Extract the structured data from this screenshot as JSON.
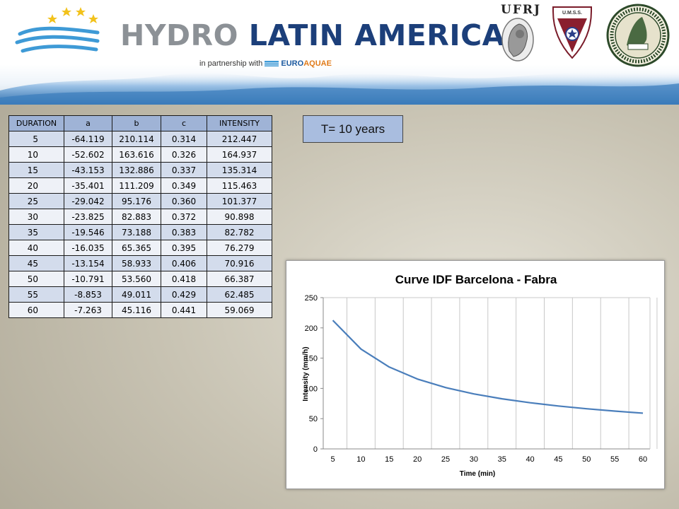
{
  "header": {
    "title_word1": "HYDRO",
    "title_word2": "LATIN AMERICA",
    "partner_prefix": "in partnership with",
    "partner_brand_1": "EURO",
    "partner_brand_2": "AQUAE",
    "ufrj_label": "UFRJ",
    "umss_label": "U.M.S.S.",
    "colors": {
      "title_blue": "#1c3f7a",
      "title_grey": "#8c9196",
      "water_blue": "#5f9fd6"
    }
  },
  "table": {
    "headers": [
      "DURATION",
      "a",
      "b",
      "c",
      "INTENSITY"
    ],
    "rows": [
      [
        "5",
        "-64.119",
        "210.114",
        "0.314",
        "212.447"
      ],
      [
        "10",
        "-52.602",
        "163.616",
        "0.326",
        "164.937"
      ],
      [
        "15",
        "-43.153",
        "132.886",
        "0.337",
        "135.314"
      ],
      [
        "20",
        "-35.401",
        "111.209",
        "0.349",
        "115.463"
      ],
      [
        "25",
        "-29.042",
        "95.176",
        "0.360",
        "101.377"
      ],
      [
        "30",
        "-23.825",
        "82.883",
        "0.372",
        "90.898"
      ],
      [
        "35",
        "-19.546",
        "73.188",
        "0.383",
        "82.782"
      ],
      [
        "40",
        "-16.035",
        "65.365",
        "0.395",
        "76.279"
      ],
      [
        "45",
        "-13.154",
        "58.933",
        "0.406",
        "70.916"
      ],
      [
        "50",
        "-10.791",
        "53.560",
        "0.418",
        "66.387"
      ],
      [
        "55",
        "-8.853",
        "49.011",
        "0.429",
        "62.485"
      ],
      [
        "60",
        "-7.263",
        "45.116",
        "0.441",
        "59.069"
      ]
    ]
  },
  "return_period_label": "T= 10 years",
  "chart_data": {
    "type": "line",
    "title": "Curve IDF Barcelona - Fabra",
    "xlabel": "Time (min)",
    "ylabel": "Intensity (mm/h)",
    "x": [
      5,
      10,
      15,
      20,
      25,
      30,
      35,
      40,
      45,
      50,
      55,
      60
    ],
    "series": [
      {
        "values": [
          212.447,
          164.937,
          135.314,
          115.463,
          101.377,
          90.898,
          82.782,
          76.279,
          70.916,
          66.387,
          62.485,
          59.069
        ],
        "color": "#4a7ebb"
      }
    ],
    "xticks": [
      5,
      10,
      15,
      20,
      25,
      30,
      35,
      40,
      45,
      50,
      55,
      60
    ],
    "yticks": [
      0,
      50,
      100,
      150,
      200,
      250
    ],
    "xlim": [
      5,
      60
    ],
    "ylim": [
      0,
      250
    ],
    "grid": "vertical"
  }
}
